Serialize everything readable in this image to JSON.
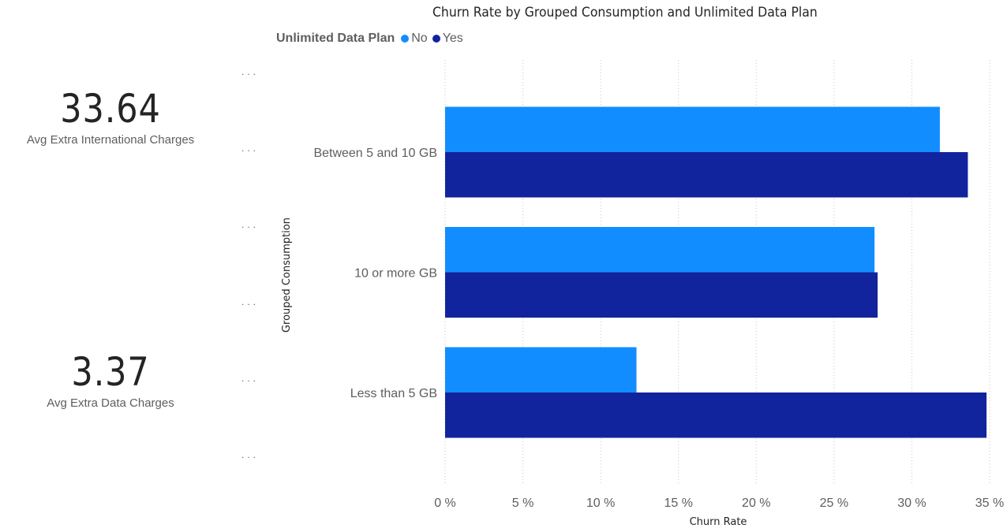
{
  "cards": [
    {
      "value": "33.64",
      "label": "Avg Extra International Charges"
    },
    {
      "value": "3.37",
      "label": "Avg Extra Data Charges"
    }
  ],
  "more_options": "...",
  "chart_data": {
    "type": "bar",
    "orientation": "horizontal",
    "title": "Churn Rate by Grouped Consumption and Unlimited Data Plan",
    "legend_title": "Unlimited Data Plan",
    "legend_position": "top-left",
    "categories": [
      "Between 5 and 10 GB",
      "10 or more GB",
      "Less than 5 GB"
    ],
    "series": [
      {
        "name": "No",
        "color": "#118dff",
        "values": [
          31.8,
          27.6,
          12.3
        ]
      },
      {
        "name": "Yes",
        "color": "#12239e",
        "values": [
          33.6,
          27.8,
          34.8
        ]
      }
    ],
    "xlabel": "Churn Rate",
    "ylabel": "Grouped Consumption",
    "xlim": [
      0,
      35
    ],
    "xticks": [
      0,
      5,
      10,
      15,
      20,
      25,
      30,
      35
    ],
    "tick_labels": [
      "0 %",
      "5 %",
      "10 %",
      "15 %",
      "20 %",
      "25 %",
      "30 %",
      "35 %"
    ],
    "grid": "vertical dotted"
  }
}
